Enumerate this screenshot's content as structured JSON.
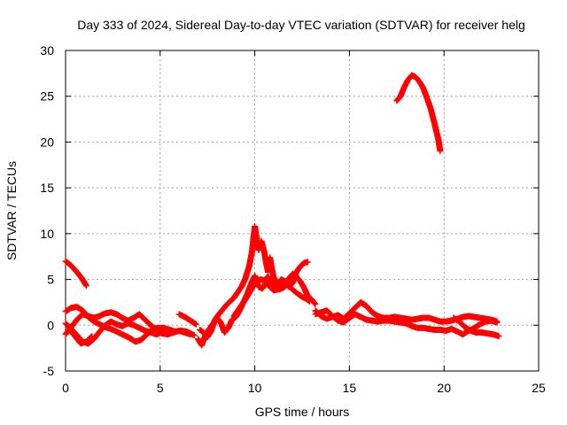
{
  "chart_data": {
    "type": "scatter",
    "title": "Day 333 of 2024, Sidereal Day-to-day VTEC variation (SDTVAR) for receiver helg",
    "xlabel": "GPS time / hours",
    "ylabel": "SDTVAR / TECUs",
    "xlim": [
      0,
      25
    ],
    "ylim": [
      -5,
      30
    ],
    "xticks": [
      0,
      5,
      10,
      15,
      20,
      25
    ],
    "yticks": [
      -5,
      0,
      5,
      10,
      15,
      20,
      25,
      30
    ],
    "grid": true,
    "marker": "plus",
    "color": "#ff0000",
    "series": [
      {
        "name": "SDTVAR",
        "tracks": [
          [
            [
              0,
              7
            ],
            [
              0.3,
              6.5
            ],
            [
              0.6,
              5.8
            ],
            [
              0.9,
              5.0
            ],
            [
              1.1,
              4.3
            ]
          ],
          [
            [
              0,
              1.5
            ],
            [
              0.3,
              1.9
            ],
            [
              0.6,
              2.0
            ],
            [
              0.9,
              1.6
            ],
            [
              1.2,
              0.9
            ],
            [
              1.5,
              0.4
            ],
            [
              1.8,
              0.1
            ],
            [
              2.1,
              -0.2
            ],
            [
              2.5,
              -0.5
            ],
            [
              2.9,
              -0.9
            ],
            [
              3.3,
              -1.3
            ],
            [
              3.7,
              -1.8
            ],
            [
              4.0,
              -1.6
            ],
            [
              4.3,
              -1.0
            ],
            [
              4.6,
              -0.4
            ],
            [
              4.9,
              -0.3
            ],
            [
              5.2,
              -0.3
            ],
            [
              5.5,
              -0.5
            ],
            [
              5.8,
              -0.7
            ],
            [
              6.1,
              -0.6
            ],
            [
              6.4,
              -0.7
            ],
            [
              6.8,
              -1.1
            ]
          ],
          [
            [
              0,
              -1.0
            ],
            [
              0.3,
              -0.2
            ],
            [
              0.6,
              0.6
            ],
            [
              0.9,
              1.2
            ],
            [
              1.2,
              1.0
            ],
            [
              1.5,
              0.8
            ],
            [
              1.8,
              1.0
            ],
            [
              2.1,
              1.3
            ],
            [
              2.4,
              1.4
            ],
            [
              2.7,
              1.2
            ],
            [
              3.0,
              0.8
            ],
            [
              3.3,
              0.5
            ],
            [
              3.6,
              0.8
            ],
            [
              3.9,
              1.2
            ],
            [
              4.2,
              0.6
            ],
            [
              4.5,
              0.0
            ],
            [
              4.8,
              -0.5
            ],
            [
              5.1,
              -0.9
            ],
            [
              5.4,
              -1.0
            ],
            [
              5.7,
              -0.8
            ],
            [
              6.0,
              -0.6
            ],
            [
              6.3,
              -0.8
            ],
            [
              6.6,
              -1.0
            ]
          ],
          [
            [
              0,
              0.2
            ],
            [
              0.3,
              -0.4
            ],
            [
              0.6,
              -1.1
            ],
            [
              0.9,
              -1.8
            ],
            [
              1.2,
              -2.0
            ],
            [
              1.5,
              -1.5
            ],
            [
              1.8,
              -0.7
            ],
            [
              2.1,
              0.0
            ],
            [
              2.4,
              0.4
            ],
            [
              2.7,
              0.1
            ],
            [
              3.0,
              -0.1
            ],
            [
              3.3,
              0.2
            ],
            [
              3.6,
              0.0
            ],
            [
              3.9,
              -0.3
            ],
            [
              4.2,
              -0.6
            ],
            [
              4.5,
              -0.8
            ],
            [
              4.8,
              -1.0
            ],
            [
              5.1,
              -0.8
            ]
          ],
          [
            [
              0.2,
              -0.5
            ],
            [
              0.5,
              -1.2
            ],
            [
              0.8,
              -2.0
            ],
            [
              1.1,
              -1.8
            ],
            [
              1.4,
              -1.2
            ]
          ],
          [
            [
              6.0,
              1.2
            ],
            [
              6.3,
              0.9
            ],
            [
              6.6,
              0.5
            ],
            [
              6.9,
              0.1
            ]
          ],
          [
            [
              7.0,
              -1.5
            ],
            [
              7.2,
              -2.2
            ],
            [
              7.4,
              -1.0
            ],
            [
              7.6,
              -0.4
            ],
            [
              7.8,
              0.2
            ],
            [
              8.0,
              0.8
            ],
            [
              8.2,
              0.3
            ],
            [
              8.4,
              -0.8
            ],
            [
              8.6,
              -0.3
            ],
            [
              8.8,
              0.6
            ],
            [
              9.0,
              0.9
            ],
            [
              9.2,
              1.6
            ],
            [
              9.4,
              2.5
            ],
            [
              9.6,
              3.4
            ],
            [
              9.8,
              4.5
            ],
            [
              10.0,
              5.4
            ],
            [
              10.2,
              4.2
            ],
            [
              10.4,
              4.0
            ],
            [
              10.6,
              4.6
            ],
            [
              10.8,
              4.2
            ],
            [
              11.0,
              3.8
            ],
            [
              11.2,
              3.9
            ],
            [
              11.4,
              4.4
            ],
            [
              11.6,
              4.3
            ],
            [
              11.8,
              5.1
            ],
            [
              12.0,
              5.6
            ],
            [
              12.2,
              5.3
            ],
            [
              12.4,
              4.8
            ],
            [
              12.6,
              4.1
            ],
            [
              12.8,
              3.2
            ],
            [
              13.0,
              2.8
            ],
            [
              13.2,
              2.3
            ]
          ],
          [
            [
              7.1,
              -0.5
            ],
            [
              7.3,
              -0.8
            ],
            [
              7.5,
              -1.3
            ],
            [
              7.7,
              -0.6
            ],
            [
              7.9,
              0.6
            ],
            [
              8.1,
              1.2
            ],
            [
              8.3,
              1.7
            ],
            [
              8.5,
              2.2
            ],
            [
              8.7,
              2.6
            ],
            [
              8.9,
              3.0
            ],
            [
              9.1,
              3.6
            ],
            [
              9.3,
              4.2
            ],
            [
              9.5,
              5.1
            ],
            [
              9.7,
              6.4
            ],
            [
              9.85,
              8.0
            ],
            [
              10.0,
              10.8
            ],
            [
              10.1,
              9.5
            ],
            [
              10.2,
              8.2
            ],
            [
              10.35,
              9.2
            ],
            [
              10.5,
              8.0
            ],
            [
              10.6,
              6.8
            ],
            [
              10.7,
              5.8
            ],
            [
              10.8,
              7.4
            ],
            [
              10.9,
              6.2
            ],
            [
              11.0,
              5.2
            ],
            [
              11.2,
              4.5
            ],
            [
              11.4,
              5.0
            ],
            [
              11.6,
              4.8
            ],
            [
              11.8,
              4.2
            ],
            [
              12.0,
              4.6
            ],
            [
              12.2,
              5.8
            ],
            [
              12.4,
              6.4
            ],
            [
              12.6,
              6.8
            ],
            [
              12.8,
              6.9
            ]
          ],
          [
            [
              8.9,
              1.0
            ],
            [
              9.1,
              1.6
            ],
            [
              9.3,
              2.2
            ],
            [
              9.5,
              2.8
            ],
            [
              9.7,
              3.5
            ],
            [
              9.9,
              4.2
            ],
            [
              10.1,
              4.8
            ],
            [
              10.3,
              5.0
            ],
            [
              10.5,
              4.9
            ],
            [
              10.7,
              5.3
            ],
            [
              10.9,
              4.6
            ],
            [
              11.1,
              4.1
            ],
            [
              11.3,
              3.9
            ],
            [
              11.5,
              4.1
            ],
            [
              11.7,
              4.4
            ],
            [
              11.9,
              4.1
            ],
            [
              12.1,
              3.7
            ],
            [
              12.3,
              3.4
            ],
            [
              12.5,
              3.1
            ],
            [
              12.7,
              2.9
            ],
            [
              12.9,
              2.6
            ]
          ],
          [
            [
              13.2,
              1.6
            ],
            [
              13.5,
              1.0
            ],
            [
              13.8,
              0.7
            ],
            [
              14.1,
              0.9
            ],
            [
              14.4,
              1.1
            ],
            [
              14.7,
              0.7
            ],
            [
              15.0,
              1.3
            ],
            [
              15.3,
              1.9
            ],
            [
              15.6,
              2.5
            ],
            [
              15.9,
              2.1
            ],
            [
              16.2,
              1.4
            ],
            [
              16.5,
              1.0
            ],
            [
              16.8,
              0.8
            ],
            [
              17.1,
              0.8
            ],
            [
              17.4,
              0.9
            ],
            [
              17.7,
              0.8
            ],
            [
              18.0,
              0.7
            ],
            [
              18.3,
              0.6
            ],
            [
              18.6,
              0.7
            ],
            [
              18.9,
              0.8
            ],
            [
              19.2,
              0.8
            ],
            [
              19.5,
              0.6
            ],
            [
              19.8,
              0.4
            ],
            [
              20.1,
              0.4
            ],
            [
              20.4,
              0.5
            ],
            [
              20.7,
              0.7
            ],
            [
              21.0,
              0.9
            ],
            [
              21.3,
              1.0
            ],
            [
              21.6,
              0.9
            ],
            [
              21.9,
              0.8
            ],
            [
              22.2,
              0.7
            ],
            [
              22.5,
              0.6
            ],
            [
              22.8,
              0.4
            ]
          ],
          [
            [
              13.2,
              1.2
            ],
            [
              13.5,
              1.4
            ],
            [
              13.8,
              1.6
            ],
            [
              14.1,
              1.0
            ],
            [
              14.4,
              0.5
            ],
            [
              14.7,
              0.3
            ],
            [
              15.0,
              0.8
            ],
            [
              15.3,
              1.2
            ],
            [
              15.6,
              0.9
            ],
            [
              15.9,
              0.6
            ],
            [
              16.2,
              0.5
            ],
            [
              16.5,
              0.4
            ],
            [
              16.8,
              0.5
            ],
            [
              17.1,
              0.5
            ],
            [
              17.4,
              0.4
            ],
            [
              17.7,
              0.3
            ],
            [
              18.0,
              0.2
            ],
            [
              18.3,
              -0.1
            ],
            [
              18.6,
              -0.3
            ],
            [
              18.9,
              -0.3
            ],
            [
              19.2,
              -0.4
            ],
            [
              19.5,
              -0.5
            ],
            [
              19.8,
              -0.5
            ],
            [
              20.1,
              -0.6
            ],
            [
              20.4,
              -0.4
            ],
            [
              20.7,
              -0.7
            ],
            [
              21.0,
              -1.0
            ],
            [
              21.3,
              -0.6
            ],
            [
              21.6,
              -0.3
            ],
            [
              21.9,
              0.1
            ],
            [
              22.2,
              0.4
            ],
            [
              22.5,
              0.5
            ],
            [
              22.8,
              0.3
            ]
          ],
          [
            [
              20.5,
              0.8
            ],
            [
              20.8,
              0.4
            ],
            [
              21.1,
              -0.2
            ],
            [
              21.4,
              -0.6
            ],
            [
              21.7,
              -0.8
            ],
            [
              22.0,
              -0.8
            ],
            [
              22.3,
              -0.9
            ],
            [
              22.6,
              -1.0
            ],
            [
              22.9,
              -1.2
            ]
          ],
          [
            [
              17.5,
              24.5
            ],
            [
              17.7,
              25.0
            ],
            [
              17.9,
              26.0
            ],
            [
              18.1,
              26.8
            ],
            [
              18.3,
              27.3
            ],
            [
              18.5,
              27.1
            ],
            [
              18.7,
              26.6
            ],
            [
              18.9,
              25.9
            ],
            [
              19.1,
              24.8
            ],
            [
              19.3,
              23.6
            ],
            [
              19.5,
              22.0
            ],
            [
              19.7,
              20.3
            ],
            [
              19.8,
              19.0
            ]
          ]
        ]
      }
    ]
  }
}
